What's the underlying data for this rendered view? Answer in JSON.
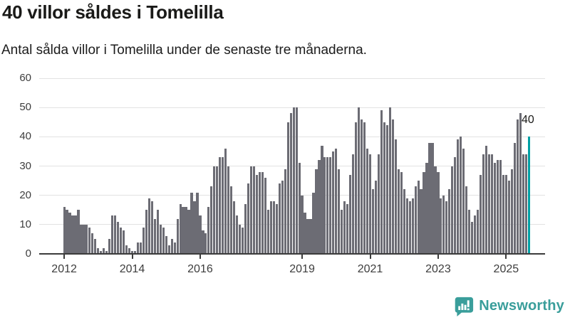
{
  "title": "40 villor såldes i Tomelilla",
  "subtitle": "Antal sålda villor i Tomelilla under de senaste tre månaderna.",
  "annotation": {
    "last_value_label": "40"
  },
  "footer": {
    "brand": "Newsworthy"
  },
  "colors": {
    "bar": "#6c6c74",
    "highlight_bar": "#00a0a5",
    "brand_teal": "#3a9e9b",
    "grid": "#e2e2e2",
    "axis": "#3b3b3b",
    "text": "#1a1a18"
  },
  "chart_data": {
    "type": "bar",
    "title": "40 villor såldes i Tomelilla",
    "subtitle": "Antal sålda villor i Tomelilla under de senaste tre månaderna.",
    "xlabel": "",
    "ylabel": "",
    "ylim": [
      0,
      60
    ],
    "y_ticks": [
      0,
      10,
      20,
      30,
      40,
      50,
      60
    ],
    "grid": "horizontal",
    "legend": "none",
    "frequency": "monthly",
    "start_month": "2012-01",
    "end_month": "2025-09",
    "x_ticks": [
      {
        "label": "2012",
        "month_index": 0
      },
      {
        "label": "2014",
        "month_index": 24
      },
      {
        "label": "2016",
        "month_index": 48
      },
      {
        "label": "2019",
        "month_index": 84
      },
      {
        "label": "2021",
        "month_index": 108
      },
      {
        "label": "2023",
        "month_index": 132
      },
      {
        "label": "2025",
        "month_index": 156
      }
    ],
    "values": [
      16,
      15,
      14,
      13,
      13,
      15,
      10,
      10,
      10,
      9,
      7,
      5,
      2,
      1,
      2,
      1,
      5,
      13,
      13,
      11,
      9,
      8,
      3,
      2,
      1,
      1,
      4,
      4,
      9,
      15,
      19,
      18,
      12,
      15,
      10,
      9,
      6,
      3,
      5,
      4,
      12,
      17,
      16,
      16,
      15,
      21,
      18,
      21,
      13,
      8,
      7,
      16,
      23,
      30,
      30,
      33,
      33,
      36,
      30,
      23,
      18,
      13,
      10,
      9,
      17,
      24,
      30,
      30,
      27,
      28,
      28,
      26,
      15,
      18,
      18,
      17,
      24,
      25,
      29,
      45,
      48,
      50,
      50,
      31,
      20,
      14,
      12,
      12,
      21,
      29,
      32,
      37,
      33,
      33,
      33,
      35,
      36,
      29,
      15,
      18,
      17,
      27,
      34,
      45,
      50,
      46,
      45,
      36,
      34,
      22,
      25,
      34,
      49,
      45,
      44,
      50,
      46,
      39,
      29,
      28,
      22,
      19,
      18,
      19,
      23,
      25,
      22,
      28,
      31,
      38,
      38,
      30,
      28,
      19,
      20,
      18,
      22,
      30,
      33,
      39,
      40,
      36,
      23,
      15,
      11,
      13,
      15,
      27,
      34,
      37,
      34,
      34,
      31,
      32,
      32,
      27,
      27,
      25,
      29,
      38,
      46,
      48,
      34,
      34,
      40
    ],
    "highlight_last_bar": true,
    "last_value": 40
  }
}
